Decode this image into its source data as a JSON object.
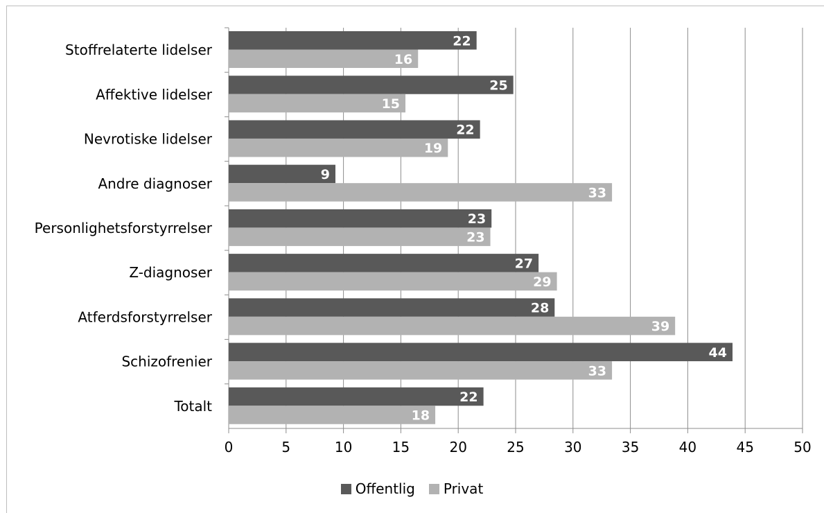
{
  "chart_data": {
    "type": "bar",
    "orientation": "horizontal",
    "categories": [
      "Stoffrelaterte lidelser",
      "Affektive lidelser",
      "Nevrotiske lidelser",
      "Andre diagnoser",
      "Personlighetsforstyrrelser",
      "Z-diagnoser",
      "Atferdsforstyrrelser",
      "Schizofrenier",
      "Totalt"
    ],
    "series": [
      {
        "name": "Offentlig",
        "color": "#595959",
        "values": [
          21.6,
          24.8,
          21.9,
          9.3,
          22.9,
          27.0,
          28.4,
          43.9,
          22.2
        ],
        "labels": [
          "22",
          "25",
          "22",
          "9",
          "23",
          "27",
          "28",
          "44",
          "22"
        ]
      },
      {
        "name": "Privat",
        "color": "#b2b2b2",
        "values": [
          16.5,
          15.4,
          19.1,
          33.4,
          22.8,
          28.6,
          38.9,
          33.4,
          18.0
        ],
        "labels": [
          "16",
          "15",
          "19",
          "33",
          "23",
          "29",
          "39",
          "33",
          "18"
        ]
      }
    ],
    "xlim": [
      0,
      50
    ],
    "xticks": [
      "0",
      "5",
      "10",
      "15",
      "20",
      "25",
      "30",
      "35",
      "40",
      "45",
      "50"
    ],
    "grid": true,
    "legend_position": "bottom",
    "title": "",
    "xlabel": "",
    "ylabel": ""
  }
}
